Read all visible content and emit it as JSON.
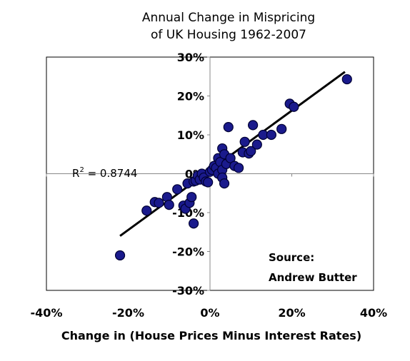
{
  "chart_data": {
    "type": "scatter",
    "title_lines": [
      "Annual Change in Mispricing",
      "of UK Housing 1962-2007"
    ],
    "xlabel": "Change in (House Prices Minus Interest Rates)",
    "ylabel": "",
    "xlim": [
      -0.4,
      0.4
    ],
    "ylim": [
      -0.3,
      0.3
    ],
    "x_ticks": [
      -0.4,
      -0.2,
      0,
      0.2,
      0.4
    ],
    "x_tick_labels": [
      "-40%",
      "-20%",
      "0%",
      "20%",
      "40%"
    ],
    "y_ticks": [
      0.3,
      0.2,
      0.1,
      0,
      -0.1,
      -0.2,
      -0.3
    ],
    "y_tick_labels": [
      "30%",
      "20%",
      "10%",
      "0%",
      "-10%",
      "-20%",
      "-30%"
    ],
    "grid": false,
    "marker_color": "#1a1a8c",
    "marker_edge_color": "#000033",
    "trendline_color": "#000000",
    "points": [
      {
        "x": -0.22,
        "y": -0.21
      },
      {
        "x": -0.155,
        "y": -0.095
      },
      {
        "x": -0.135,
        "y": -0.073
      },
      {
        "x": -0.125,
        "y": -0.075
      },
      {
        "x": -0.105,
        "y": -0.06
      },
      {
        "x": -0.1,
        "y": -0.08
      },
      {
        "x": -0.08,
        "y": -0.04
      },
      {
        "x": -0.065,
        "y": -0.082
      },
      {
        "x": -0.06,
        "y": -0.09
      },
      {
        "x": -0.055,
        "y": -0.025
      },
      {
        "x": -0.05,
        "y": -0.075
      },
      {
        "x": -0.045,
        "y": -0.06
      },
      {
        "x": -0.04,
        "y": -0.02
      },
      {
        "x": -0.035,
        "y": -0.018
      },
      {
        "x": -0.04,
        "y": -0.128
      },
      {
        "x": -0.03,
        "y": -0.005
      },
      {
        "x": -0.025,
        "y": -0.015
      },
      {
        "x": -0.02,
        "y": 0.0
      },
      {
        "x": -0.015,
        "y": -0.01
      },
      {
        "x": -0.01,
        "y": -0.02
      },
      {
        "x": -0.005,
        "y": -0.022
      },
      {
        "x": 0.0,
        "y": 0.005
      },
      {
        "x": 0.005,
        "y": 0.01
      },
      {
        "x": 0.01,
        "y": 0.02
      },
      {
        "x": 0.015,
        "y": 0.015
      },
      {
        "x": 0.02,
        "y": 0.0
      },
      {
        "x": 0.02,
        "y": 0.04
      },
      {
        "x": 0.025,
        "y": 0.03
      },
      {
        "x": 0.03,
        "y": 0.01
      },
      {
        "x": 0.03,
        "y": -0.01
      },
      {
        "x": 0.035,
        "y": -0.025
      },
      {
        "x": 0.03,
        "y": 0.065
      },
      {
        "x": 0.035,
        "y": 0.05
      },
      {
        "x": 0.04,
        "y": 0.025
      },
      {
        "x": 0.045,
        "y": 0.12
      },
      {
        "x": 0.05,
        "y": 0.04
      },
      {
        "x": 0.06,
        "y": 0.02
      },
      {
        "x": 0.07,
        "y": 0.015
      },
      {
        "x": 0.08,
        "y": 0.055
      },
      {
        "x": 0.085,
        "y": 0.082
      },
      {
        "x": 0.095,
        "y": 0.052
      },
      {
        "x": 0.1,
        "y": 0.058
      },
      {
        "x": 0.105,
        "y": 0.125
      },
      {
        "x": 0.115,
        "y": 0.075
      },
      {
        "x": 0.13,
        "y": 0.1
      },
      {
        "x": 0.15,
        "y": 0.1
      },
      {
        "x": 0.175,
        "y": 0.115
      },
      {
        "x": 0.195,
        "y": 0.18
      },
      {
        "x": 0.205,
        "y": 0.172
      },
      {
        "x": 0.335,
        "y": 0.243
      }
    ],
    "trendline": {
      "x": [
        -0.22,
        0.33
      ],
      "y": [
        -0.16,
        0.262
      ]
    },
    "annotations": {
      "r2_prefix": "R",
      "r2_sup": "2",
      "r2_value": " = 0.8744",
      "source_line1": "Source:",
      "source_line2": "Andrew Butter"
    }
  }
}
